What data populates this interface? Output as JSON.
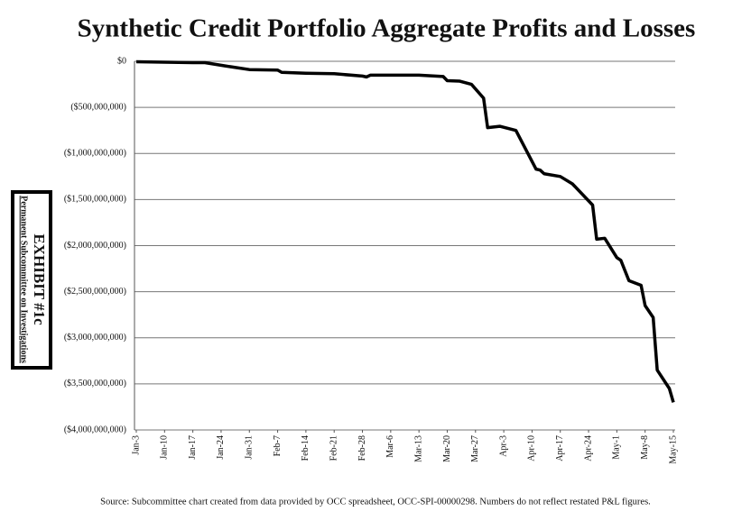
{
  "chart_data": {
    "type": "line",
    "title": "Synthetic Credit Portfolio Aggregate Profits and Losses",
    "source": "Source:  Subcommittee chart created from data provided by OCC spreadsheet, OCC-SPI-00000298.  Numbers do not reflect restated P&L figures.",
    "x": [
      0,
      7,
      14,
      17,
      22,
      28,
      35,
      36,
      42,
      49,
      56,
      57,
      58,
      63,
      70,
      76,
      77,
      80,
      83,
      86,
      87,
      90,
      94,
      99,
      100,
      101,
      105,
      108,
      113,
      114,
      116,
      119,
      120,
      122,
      125,
      126,
      128,
      129,
      132,
      133
    ],
    "series": [
      {
        "color": "#000000",
        "values": [
          -5000000,
          -10000000,
          -15000000,
          -15000000,
          -50000000,
          -90000000,
          -95000000,
          -120000000,
          -130000000,
          -135000000,
          -160000000,
          -170000000,
          -150000000,
          -150000000,
          -150000000,
          -165000000,
          -210000000,
          -215000000,
          -250000000,
          -400000000,
          -720000000,
          -705000000,
          -750000000,
          -1170000000,
          -1180000000,
          -1220000000,
          -1250000000,
          -1330000000,
          -1560000000,
          -1930000000,
          -1920000000,
          -2130000000,
          -2160000000,
          -2380000000,
          -2430000000,
          -2650000000,
          -2780000000,
          -3350000000,
          -3550000000,
          -3700000000
        ]
      }
    ],
    "xlim": [
      0,
      133
    ],
    "xticks": [
      {
        "value": 0,
        "label": "Jan-3"
      },
      {
        "value": 7,
        "label": "Jan-10"
      },
      {
        "value": 14,
        "label": "Jan-17"
      },
      {
        "value": 21,
        "label": "Jan-24"
      },
      {
        "value": 28,
        "label": "Jan-31"
      },
      {
        "value": 35,
        "label": "Feb-7"
      },
      {
        "value": 42,
        "label": "Feb-14"
      },
      {
        "value": 49,
        "label": "Feb-21"
      },
      {
        "value": 56,
        "label": "Feb-28"
      },
      {
        "value": 63,
        "label": "Mar-6"
      },
      {
        "value": 70,
        "label": "Mar-13"
      },
      {
        "value": 77,
        "label": "Mar-20"
      },
      {
        "value": 84,
        "label": "Mar-27"
      },
      {
        "value": 91,
        "label": "Apr-3"
      },
      {
        "value": 98,
        "label": "Apr-10"
      },
      {
        "value": 105,
        "label": "Apr-17"
      },
      {
        "value": 112,
        "label": "Apr-24"
      },
      {
        "value": 119,
        "label": "May-1"
      },
      {
        "value": 126,
        "label": "May-8"
      },
      {
        "value": 133,
        "label": "May-15"
      }
    ],
    "ylim": [
      -4000000000,
      0
    ],
    "yticks": [
      {
        "value": 0,
        "label": "$0"
      },
      {
        "value": -500000000,
        "label": "($500,000,000)"
      },
      {
        "value": -1000000000,
        "label": "($1,000,000,000)"
      },
      {
        "value": -1500000000,
        "label": "($1,500,000,000)"
      },
      {
        "value": -2000000000,
        "label": "($2,000,000,000)"
      },
      {
        "value": -2500000000,
        "label": "($2,500,000,000)"
      },
      {
        "value": -3000000000,
        "label": "($3,000,000,000)"
      },
      {
        "value": -3500000000,
        "label": "($3,500,000,000)"
      },
      {
        "value": -4000000000,
        "label": "($4,000,000,000)"
      }
    ],
    "grid": true
  },
  "exhibit": {
    "committee": "Permanent Subcommittee on Investigations",
    "label": "EXHIBIT #1c"
  }
}
